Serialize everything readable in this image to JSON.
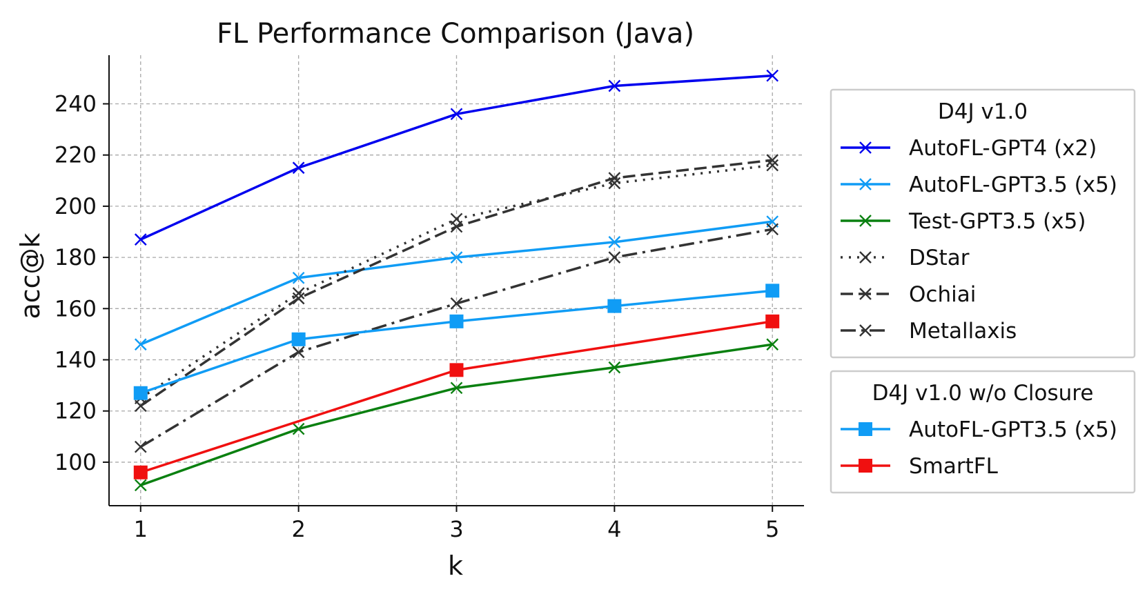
{
  "chart_data": {
    "type": "line",
    "title": "FL Performance Comparison (Java)",
    "xlabel": "k",
    "ylabel": "acc@k",
    "x": [
      1,
      2,
      3,
      4,
      5
    ],
    "xlim": [
      0.8,
      5.2
    ],
    "ylim": [
      83,
      259
    ],
    "yticks": [
      100,
      120,
      140,
      160,
      180,
      200,
      220,
      240
    ],
    "grid": true,
    "legend_placement": "right-outside",
    "legend_groups": [
      {
        "title": "D4J v1.0",
        "series": [
          {
            "name": "AutoFL-GPT4 (x2)",
            "values": [
              187,
              215,
              236,
              247,
              251
            ],
            "color": "#0000ee",
            "dash": "solid",
            "marker": "x"
          },
          {
            "name": "AutoFL-GPT3.5 (x5)",
            "values": [
              146,
              172,
              180,
              186,
              194
            ],
            "color": "#109cf5",
            "dash": "solid",
            "marker": "x"
          },
          {
            "name": "Test-GPT3.5 (x5)",
            "values": [
              91,
              113,
              129,
              137,
              146
            ],
            "color": "#0a8010",
            "dash": "solid",
            "marker": "x"
          },
          {
            "name": "DStar",
            "values": [
              125,
              166,
              195,
              209,
              216
            ],
            "color": "#333333",
            "dash": "dotted",
            "marker": "x"
          },
          {
            "name": "Ochiai",
            "values": [
              122,
              164,
              192,
              211,
              218
            ],
            "color": "#333333",
            "dash": "dashed",
            "marker": "x"
          },
          {
            "name": "Metallaxis",
            "values": [
              106,
              143,
              162,
              180,
              191
            ],
            "color": "#333333",
            "dash": "dashdot",
            "marker": "x"
          }
        ]
      },
      {
        "title": "D4J v1.0 w/o Closure",
        "series": [
          {
            "name": "AutoFL-GPT3.5 (x5)",
            "values": [
              127,
              148,
              155,
              161,
              167
            ],
            "color": "#109cf5",
            "dash": "solid",
            "marker": "square"
          },
          {
            "name": "SmartFL",
            "values": [
              96,
              null,
              136,
              null,
              155
            ],
            "color": "#f01010",
            "dash": "solid",
            "marker": "square"
          }
        ]
      }
    ]
  }
}
